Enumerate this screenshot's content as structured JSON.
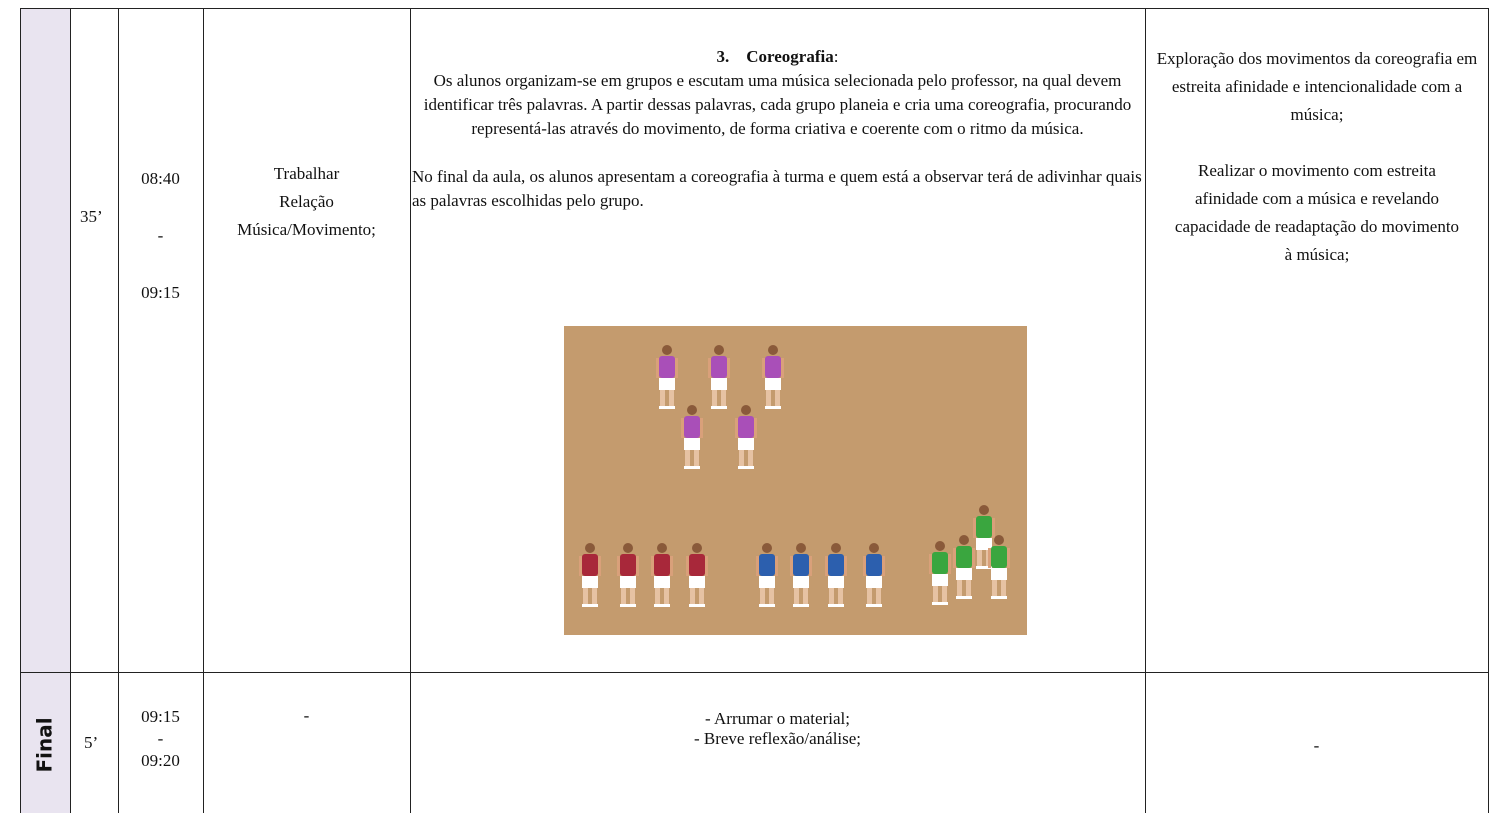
{
  "table": {
    "rows": [
      {
        "duration": "35’",
        "time": [
          "08:40",
          "-",
          "09:15"
        ],
        "objective": [
          "Trabalhar",
          "Relação",
          "Música/Movimento;"
        ],
        "activity": {
          "heading_number": "3.",
          "heading": "Coreografia",
          "heading_suffix": ":",
          "paragraphs": [
            "Os alunos organizam-se em grupos e escutam uma música selecionada pelo professor, na qual devem identificar três palavras. A partir dessas palavras, cada grupo planeia e cria uma coreografia, procurando representá-las através do movimento, de forma criativa e coerente com o ritmo da música.",
            "No final da aula, os alunos apresentam a coreografia à turma e quem está a observar terá de adivinhar quais as palavras escolhidas pelo grupo."
          ]
        },
        "criteria": [
          "Exploração dos movimentos da coreografia em estreita afinidade e intencionalidade com a música;",
          "Realizar o movimento com estreita afinidade com a música e revelando capacidade de readaptação do movimento à música;"
        ]
      },
      {
        "phase": "Final",
        "duration": "5’",
        "time": [
          "09:15",
          "-",
          "09:20"
        ],
        "objective": [
          "-"
        ],
        "activity": {
          "lines": [
            "- Arrumar o material;",
            "- Breve reflexão/análise;"
          ]
        },
        "criteria": [
          "-"
        ]
      }
    ]
  }
}
